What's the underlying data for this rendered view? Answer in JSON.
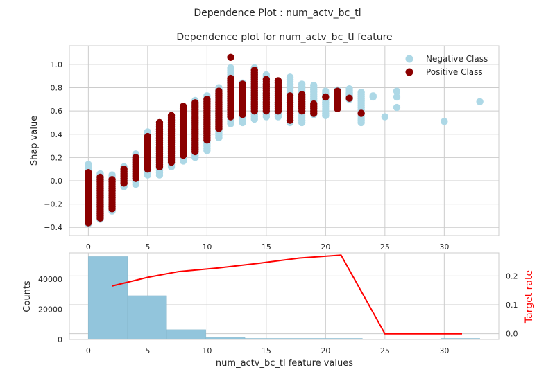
{
  "figure": {
    "suptitle": "Dependence Plot : num_actv_bc_tl"
  },
  "chart_data": [
    {
      "type": "scatter",
      "title": "Dependence plot for num_actv_bc_tl feature",
      "xlabel": "",
      "ylabel": "Shap value",
      "xlim": [
        -1.6,
        34.6
      ],
      "ylim": [
        -0.47,
        1.16
      ],
      "xticks": [
        0,
        5,
        10,
        15,
        20,
        25,
        30
      ],
      "yticks": [
        -0.4,
        -0.2,
        0.0,
        0.2,
        0.4,
        0.6,
        0.8,
        1.0
      ],
      "grid": true,
      "legend_position": "top-right",
      "series": [
        {
          "name": "Negative Class",
          "color": "#add8e6",
          "groups": [
            {
              "x": 0,
              "y_min": -0.37,
              "y_max": 0.14
            },
            {
              "x": 1,
              "y_min": -0.33,
              "y_max": 0.06
            },
            {
              "x": 2,
              "y_min": -0.26,
              "y_max": 0.05
            },
            {
              "x": 3,
              "y_min": -0.05,
              "y_max": 0.12
            },
            {
              "x": 4,
              "y_min": -0.03,
              "y_max": 0.23
            },
            {
              "x": 5,
              "y_min": 0.05,
              "y_max": 0.42
            },
            {
              "x": 6,
              "y_min": 0.05,
              "y_max": 0.5
            },
            {
              "x": 7,
              "y_min": 0.12,
              "y_max": 0.55
            },
            {
              "x": 8,
              "y_min": 0.17,
              "y_max": 0.6
            },
            {
              "x": 9,
              "y_min": 0.2,
              "y_max": 0.69
            },
            {
              "x": 10,
              "y_min": 0.26,
              "y_max": 0.73
            },
            {
              "x": 11,
              "y_min": 0.37,
              "y_max": 0.8
            },
            {
              "x": 12,
              "y_min": 0.49,
              "y_max": 0.97
            },
            {
              "x": 13,
              "y_min": 0.5,
              "y_max": 0.84
            },
            {
              "x": 14,
              "y_min": 0.53,
              "y_max": 0.97
            },
            {
              "x": 15,
              "y_min": 0.55,
              "y_max": 0.91
            },
            {
              "x": 16,
              "y_min": 0.55,
              "y_max": 0.85
            },
            {
              "x": 17,
              "y_min": 0.5,
              "y_max": 0.89
            },
            {
              "x": 18,
              "y_min": 0.5,
              "y_max": 0.83
            },
            {
              "x": 19,
              "y_min": 0.57,
              "y_max": 0.82
            },
            {
              "x": 20,
              "y_min": 0.56,
              "y_max": 0.77
            },
            {
              "x": 21,
              "y_min": 0.62,
              "y_max": 0.78
            },
            {
              "x": 22,
              "y_min": 0.7,
              "y_max": 0.79
            },
            {
              "x": 23,
              "y_min": 0.5,
              "y_max": 0.76
            }
          ],
          "points": [
            {
              "x": 24,
              "y": 0.72
            },
            {
              "x": 24,
              "y": 0.73
            },
            {
              "x": 25,
              "y": 0.55
            },
            {
              "x": 26,
              "y": 0.77
            },
            {
              "x": 26,
              "y": 0.72
            },
            {
              "x": 26,
              "y": 0.63
            },
            {
              "x": 30,
              "y": 0.51
            },
            {
              "x": 33,
              "y": 0.68
            }
          ]
        },
        {
          "name": "Positive Class",
          "color": "#8b0000",
          "groups": [
            {
              "x": 0,
              "y_min": -0.36,
              "y_max": 0.07
            },
            {
              "x": 1,
              "y_min": -0.32,
              "y_max": 0.03
            },
            {
              "x": 2,
              "y_min": -0.24,
              "y_max": 0.01
            },
            {
              "x": 3,
              "y_min": -0.02,
              "y_max": 0.1
            },
            {
              "x": 4,
              "y_min": 0.02,
              "y_max": 0.2
            },
            {
              "x": 5,
              "y_min": 0.1,
              "y_max": 0.38
            },
            {
              "x": 6,
              "y_min": 0.12,
              "y_max": 0.5
            },
            {
              "x": 7,
              "y_min": 0.16,
              "y_max": 0.56
            },
            {
              "x": 8,
              "y_min": 0.22,
              "y_max": 0.64
            },
            {
              "x": 9,
              "y_min": 0.25,
              "y_max": 0.67
            },
            {
              "x": 10,
              "y_min": 0.35,
              "y_max": 0.7
            },
            {
              "x": 11,
              "y_min": 0.45,
              "y_max": 0.77
            },
            {
              "x": 12,
              "y_min": 0.55,
              "y_max": 0.88
            },
            {
              "x": 13,
              "y_min": 0.57,
              "y_max": 0.83
            },
            {
              "x": 14,
              "y_min": 0.6,
              "y_max": 0.95
            },
            {
              "x": 15,
              "y_min": 0.6,
              "y_max": 0.87
            },
            {
              "x": 16,
              "y_min": 0.6,
              "y_max": 0.86
            },
            {
              "x": 17,
              "y_min": 0.52,
              "y_max": 0.73
            },
            {
              "x": 18,
              "y_min": 0.6,
              "y_max": 0.74
            },
            {
              "x": 19,
              "y_min": 0.58,
              "y_max": 0.66
            },
            {
              "x": 20,
              "y_min": 0.72,
              "y_max": 0.72
            },
            {
              "x": 21,
              "y_min": 0.62,
              "y_max": 0.77
            },
            {
              "x": 22,
              "y_min": 0.71,
              "y_max": 0.71
            },
            {
              "x": 23,
              "y_min": 0.58,
              "y_max": 0.58
            }
          ],
          "points": [
            {
              "x": 12,
              "y": 1.06
            }
          ]
        }
      ]
    },
    {
      "type": "bar",
      "subtype": "histogram_with_line",
      "title": "",
      "xlabel": "num_actv_bc_tl feature values",
      "ylabel": "Counts",
      "y2label": "Target rate",
      "xlim": [
        -1.6,
        34.6
      ],
      "ylim": [
        0,
        57500
      ],
      "y2lim": [
        -0.02,
        0.28
      ],
      "xticks": [
        0,
        5,
        10,
        15,
        20,
        25,
        30
      ],
      "yticks": [
        0,
        20000,
        40000
      ],
      "y2ticks": [
        0.0,
        0.1,
        0.2
      ],
      "grid": true,
      "bar_color": "#92c5dc",
      "line_color": "#ff0000",
      "bins": [
        {
          "x_start": 0,
          "x_end": 3.3,
          "count": 55000
        },
        {
          "x_start": 3.3,
          "x_end": 6.6,
          "count": 29000
        },
        {
          "x_start": 6.6,
          "x_end": 9.9,
          "count": 6500
        },
        {
          "x_start": 9.9,
          "x_end": 13.2,
          "count": 1200
        },
        {
          "x_start": 13.2,
          "x_end": 16.5,
          "count": 150
        },
        {
          "x_start": 16.5,
          "x_end": 19.8,
          "count": 30
        },
        {
          "x_start": 19.8,
          "x_end": 23.1,
          "count": 5
        },
        {
          "x_start": 23.1,
          "x_end": 26.4,
          "count": 0
        },
        {
          "x_start": 26.4,
          "x_end": 29.7,
          "count": 0
        },
        {
          "x_start": 29.7,
          "x_end": 33.0,
          "count": 1
        }
      ],
      "line": {
        "x": [
          2.0,
          5.0,
          7.6,
          11.0,
          14.4,
          17.8,
          21.3,
          25.0,
          28.2,
          31.5
        ],
        "y": [
          0.165,
          0.195,
          0.215,
          0.228,
          0.244,
          0.262,
          0.272,
          0.0,
          0.0,
          0.0
        ]
      }
    }
  ]
}
